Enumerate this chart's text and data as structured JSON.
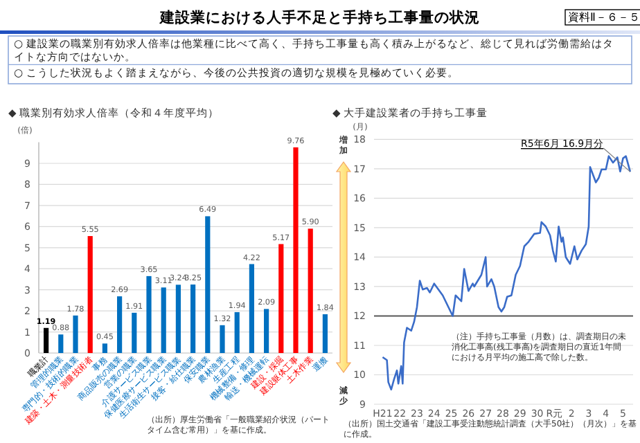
{
  "chart_data": [
    {
      "type": "bar",
      "title": "◆ 職業別有効求人倍率（令和４年度平均）",
      "ylabel": "(倍)",
      "categories": [
        "職業計",
        "管理的職業",
        "専門的・技術的職業",
        "建築・土木・測量技術者",
        "事務",
        "商品販売の職業",
        "営業の職業",
        "介護サービス職業",
        "保健医療サービス職業",
        "生活衛生サービス職業",
        "接客・給仕職業",
        "保安職業",
        "農林漁業",
        "生産工程",
        "機械整備・修理",
        "輸送・機械運転",
        "建設・採掘",
        "建設躯体工事",
        "土木作業",
        "運搬"
      ],
      "values": [
        1.19,
        0.88,
        1.78,
        5.55,
        0.45,
        2.69,
        1.91,
        3.65,
        3.11,
        3.24,
        3.25,
        6.49,
        1.32,
        1.94,
        4.22,
        2.09,
        5.17,
        9.76,
        5.9,
        1.84
      ],
      "value_labels": [
        "1.19",
        "0.88",
        "1.78",
        "5.55",
        "0.45",
        "2.69",
        "1.91",
        "3.65",
        "3.11",
        "3.24",
        "3.25",
        "6.49",
        "1.32",
        "1.94",
        "4.22",
        "2.09",
        "5.17",
        "9.76",
        "5.90",
        "1.84"
      ],
      "colors": [
        "#000000",
        "#0070c0",
        "#0070c0",
        "#ff0000",
        "#0070c0",
        "#0070c0",
        "#0070c0",
        "#0070c0",
        "#0070c0",
        "#0070c0",
        "#0070c0",
        "#0070c0",
        "#0070c0",
        "#0070c0",
        "#0070c0",
        "#0070c0",
        "#ff0000",
        "#ff0000",
        "#ff0000",
        "#0070c0"
      ],
      "ylim": [
        0,
        10
      ],
      "yticks": [
        0,
        1,
        2,
        3,
        4,
        5,
        6,
        7,
        8,
        9
      ],
      "grid": "y",
      "annotations": [
        "建設業における人手不足と手持ち工事量の状況",
        "資料Ⅱ－６－５",
        "○ 建設業の職業別有効求人倍率は他業種に比べて高く、手持ち工事量も高く積み上がるなど、総じて見れば労働需給はタイトな方向ではないか。",
        "○ こうした状況もよく踏まえながら、今後の公共投資の適切な規模を見極めていく必要。",
        "（出所）厚生労働省「一般職業紹介状況（パートタイム含む常用）」を基に作成。"
      ]
    },
    {
      "type": "line",
      "title": "◆ 大手建設業者の手持ち工事量",
      "ylabel": "(月)",
      "xlim": [
        "2008-07",
        "2023-08"
      ],
      "xticks": [
        {
          "value": "2009",
          "label": "H21"
        },
        {
          "value": "2010",
          "label": "22"
        },
        {
          "value": "2011",
          "label": "23"
        },
        {
          "value": "2012",
          "label": "24"
        },
        {
          "value": "2013",
          "label": "25"
        },
        {
          "value": "2014",
          "label": "26"
        },
        {
          "value": "2015",
          "label": "27"
        },
        {
          "value": "2016",
          "label": "28"
        },
        {
          "value": "2017",
          "label": "29"
        },
        {
          "value": "2018",
          "label": "30"
        },
        {
          "value": "2019",
          "label": "R元"
        },
        {
          "value": "2020",
          "label": "2"
        },
        {
          "value": "2021",
          "label": "3"
        },
        {
          "value": "2022",
          "label": "4"
        },
        {
          "value": "2023",
          "label": "5"
        }
      ],
      "ylim": [
        9,
        18
      ],
      "yticks": [
        9,
        10,
        11,
        12,
        13,
        14,
        15,
        16,
        17,
        18
      ],
      "grid": "y",
      "marker": "none",
      "series": [
        {
          "color": "#3a6cc8",
          "x": [
            "2009-01",
            "2009-04",
            "2009-05",
            "2009-07",
            "2009-09",
            "2009-11",
            "2009-12",
            "2010-02",
            "2010-03",
            "2010-04",
            "2010-06",
            "2010-09",
            "2010-11",
            "2011-01",
            "2011-03",
            "2011-05",
            "2011-08",
            "2011-10",
            "2012-01",
            "2012-04",
            "2012-07",
            "2012-11",
            "2013-02",
            "2013-04",
            "2013-08",
            "2013-10",
            "2014-01",
            "2014-04",
            "2014-05",
            "2014-10",
            "2015-01",
            "2015-02",
            "2015-05",
            "2015-07",
            "2015-10",
            "2015-12",
            "2016-02",
            "2016-04",
            "2016-07",
            "2016-10",
            "2017-01",
            "2017-03",
            "2017-04",
            "2017-07",
            "2017-11",
            "2018-03",
            "2018-04",
            "2018-07",
            "2018-10",
            "2018-12",
            "2019-02",
            "2019-04",
            "2019-06",
            "2019-07",
            "2019-09",
            "2019-12",
            "2020-03",
            "2020-05",
            "2020-08",
            "2020-11",
            "2021-01",
            "2021-02",
            "2021-06",
            "2021-08",
            "2021-10",
            "2022-01",
            "2022-03",
            "2022-06",
            "2022-09",
            "2022-11",
            "2023-01",
            "2023-03",
            "2023-06"
          ],
          "values": [
            10.6,
            10.5,
            9.75,
            9.5,
            9.85,
            10.15,
            9.7,
            10.3,
            9.7,
            11.1,
            11.6,
            11.5,
            11.8,
            12.3,
            13.2,
            12.9,
            12.95,
            12.8,
            13.1,
            12.9,
            12.7,
            12.3,
            12.0,
            12.7,
            12.5,
            13.6,
            12.85,
            13.1,
            13.0,
            13.4,
            14.0,
            13.0,
            13.25,
            13.0,
            12.3,
            12.15,
            12.3,
            12.65,
            12.7,
            13.4,
            13.7,
            14.15,
            14.37,
            14.52,
            14.79,
            14.82,
            15.19,
            15.04,
            14.74,
            14.22,
            13.85,
            15.04,
            14.52,
            14.67,
            14.0,
            13.77,
            14.37,
            13.92,
            14.22,
            14.44,
            15.04,
            17.06,
            16.54,
            16.69,
            16.98,
            16.98,
            17.43,
            17.21,
            17.39,
            16.91,
            17.36,
            17.43,
            16.9
          ]
        }
      ],
      "ref_lines": [
        {
          "axis": "y",
          "value": 12,
          "color": "#595959"
        }
      ],
      "annotations": [
        {
          "text": "R5年6月 16.9月分",
          "x": "2023-06",
          "y": 16.9
        },
        "増加",
        "減少",
        "（注）手持ち工事量（月数）は、調査期日の未消化工事高(残工事高)を調査期日の直近1年間における月平均の施工高で除した数。",
        "（出所）国土交通省「建設工事受注動態統計調査（大手50社）（月次）」を基に作成。"
      ]
    }
  ]
}
